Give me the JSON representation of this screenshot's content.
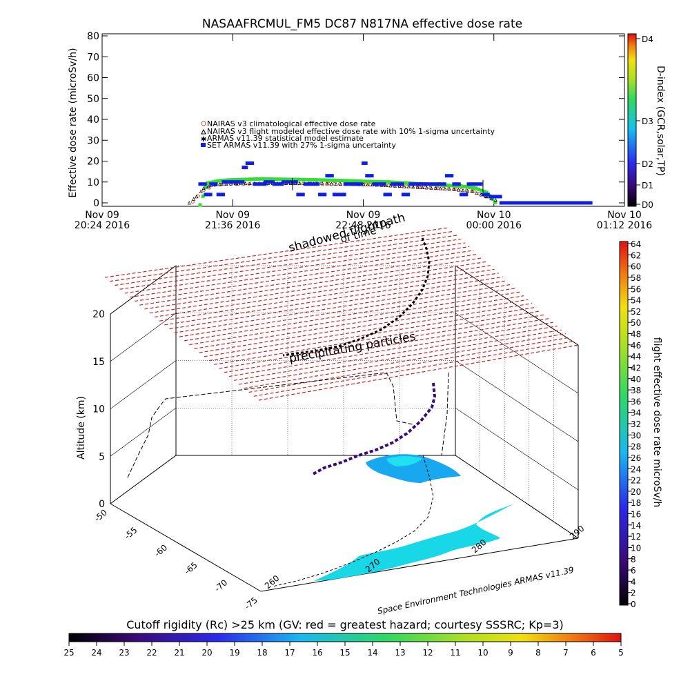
{
  "colors": {
    "nairas_clim": "#c8533a",
    "nairas_flight": "#000000",
    "armas_model": "#33dd33",
    "set_armas": "#1020e0",
    "shadow_plane": "#cc2222"
  },
  "chart_data": [
    {
      "type": "scatter",
      "title": "NASAAFRCMUL_FM5 DC87 N817NA effective dose rate",
      "ylabel": "Effective dose rate (microSv/h)",
      "ylim": [
        0,
        80
      ],
      "yticks": [
        "0",
        "10",
        "20",
        "30",
        "40",
        "50",
        "60",
        "70",
        "80"
      ],
      "xticks": [
        {
          "line1": "Nov 09",
          "line2": "20:24 2016",
          "t": 0
        },
        {
          "line1": "Nov 09",
          "line2": "21:36 2016",
          "t": 72
        },
        {
          "line1": "Nov 09",
          "line2": "22:48 2016",
          "t": 144
        },
        {
          "line1": "Nov 10",
          "line2": "00:00 2016",
          "t": 216
        },
        {
          "line1": "Nov 10",
          "line2": "01:12 2016",
          "t": 288
        }
      ],
      "xlim": [
        0,
        288
      ],
      "grid": false,
      "legend_position": "center-left",
      "legend": [
        "NAIRAS v3 climatological effective dose rate",
        "NAIRAS v3 flight modeled effective dose rate with 10% 1-sigma uncertainty",
        "ARMAS v11.39 statistical model estimate",
        "SET ARMAS v11.39 with 27% 1-sigma uncertainty"
      ],
      "series": [
        {
          "name": "NAIRAS v3 climatological effective dose rate",
          "x": [
            50,
            56,
            62,
            68,
            75,
            85,
            95,
            105,
            115,
            125,
            135,
            145,
            155,
            165,
            175,
            185,
            195,
            205,
            212
          ],
          "values": [
            0.5,
            6,
            8.5,
            9,
            9,
            9,
            9.2,
            9.3,
            9.3,
            9.2,
            9,
            8.8,
            8.5,
            8,
            7.5,
            7,
            6.5,
            5.5,
            3
          ]
        },
        {
          "name": "NAIRAS v3 flight modeled effective dose rate with 10% 1-sigma uncertainty",
          "x": [
            48,
            52,
            56,
            60,
            66,
            74,
            84,
            94,
            104,
            114,
            124,
            134,
            144,
            154,
            164,
            174,
            184,
            194,
            204,
            212,
            218
          ],
          "values": [
            0,
            3,
            7,
            8.5,
            9,
            9.3,
            9.4,
            9.5,
            9.4,
            9.3,
            9.2,
            9,
            8.8,
            8.5,
            8,
            7.5,
            7,
            6.5,
            5.5,
            3,
            1
          ]
        },
        {
          "name": "ARMAS v11.39 statistical model estimate",
          "x": [
            54,
            58,
            64,
            70,
            78,
            88,
            98,
            108,
            118,
            128,
            138,
            148,
            158,
            168,
            178,
            188,
            198,
            206,
            212,
            218
          ],
          "values": [
            -1,
            9.5,
            10.5,
            11,
            11.2,
            11.5,
            11.3,
            11.2,
            11,
            10.8,
            10.5,
            10.2,
            10,
            9.5,
            9,
            8.5,
            8,
            7,
            5,
            -1
          ]
        },
        {
          "name": "SET ARMAS v11.39 with 27% 1-sigma uncertainty",
          "x": [
            54,
            57,
            60,
            64,
            67,
            72,
            78,
            80,
            84,
            90,
            95,
            100,
            108,
            112,
            120,
            124,
            128,
            134,
            140,
            144,
            146,
            150,
            156,
            160,
            166,
            170,
            176,
            180,
            186,
            190,
            194,
            198,
            202,
            206,
            210,
            214,
            220,
            230,
            240,
            250,
            260,
            268
          ],
          "values": [
            9,
            4,
            9,
            4,
            10,
            10,
            17,
            19,
            9,
            10,
            9,
            10,
            4,
            9,
            4,
            13,
            4,
            9,
            9,
            19,
            13,
            9,
            4,
            9,
            4,
            9,
            9,
            9,
            9,
            13,
            9,
            4,
            9,
            9,
            4,
            3,
            0,
            0,
            0,
            0,
            0,
            0
          ]
        }
      ],
      "colorbar": {
        "label": "D-index (GCR,solar,TP)",
        "ticks": [
          "D0",
          "D1",
          "D2",
          "D3",
          "D4"
        ]
      }
    },
    {
      "type": "scatter",
      "subtype": "3d-flight-path",
      "zlabel": "Altitude (km)",
      "zticks": [
        "0",
        "5",
        "10",
        "15",
        "20"
      ],
      "ylabel_ticks": [
        "-50",
        "-55",
        "-60",
        "-65",
        "-70",
        "-75"
      ],
      "xlabel_ticks": [
        "260",
        "270",
        "280",
        "290"
      ],
      "annotations": [
        "shadowed flightpath",
        "of time",
        "precipitating particles"
      ],
      "credit": "Space Environment Technologies ARMAS v11.39",
      "colorbar_right": {
        "label": "flight effective dose rate microSv/h",
        "ticks": [
          "0",
          "2",
          "4",
          "6",
          "8",
          "10",
          "12",
          "14",
          "16",
          "18",
          "20",
          "22",
          "24",
          "26",
          "28",
          "30",
          "32",
          "34",
          "36",
          "38",
          "40",
          "42",
          "44",
          "46",
          "48",
          "50",
          "52",
          "54",
          "56",
          "58",
          "60",
          "62",
          "64"
        ]
      },
      "colorbar_bottom": {
        "label": "Cutoff rigidity (Rc) >25 km (GV: red = greatest hazard; courtesy SSSRC; Kp=3)",
        "ticks": [
          "25",
          "24",
          "23",
          "22",
          "21",
          "20",
          "19",
          "18",
          "17",
          "16",
          "15",
          "14",
          "13",
          "12",
          "11",
          "10",
          "9",
          "8",
          "7",
          "6",
          "5"
        ]
      }
    }
  ]
}
